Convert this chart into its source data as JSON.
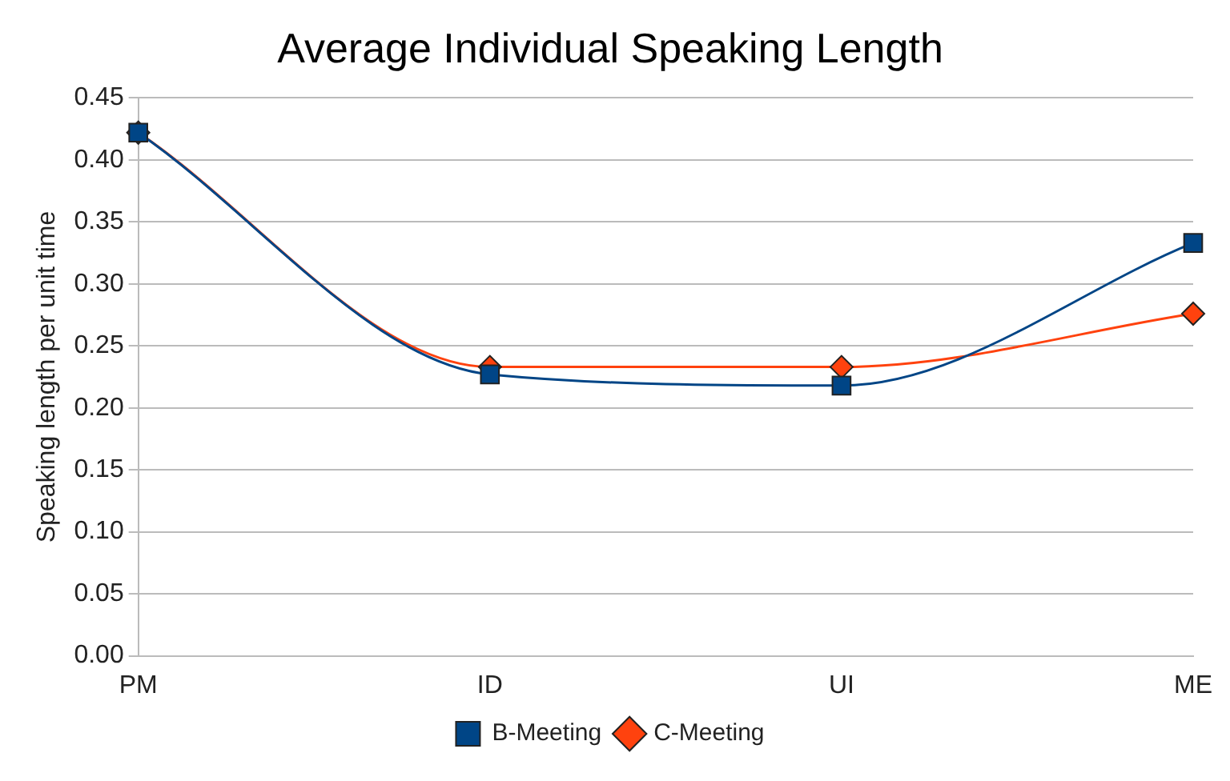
{
  "chart_data": {
    "type": "line",
    "title": "Average Individual Speaking Length",
    "ylabel": "Speaking length per unit time",
    "categories": [
      "PM",
      "ID",
      "UI",
      "ME"
    ],
    "series": [
      {
        "name": "B-Meeting",
        "color": "#004586",
        "marker": "square",
        "values": [
          0.422,
          0.227,
          0.218,
          0.333
        ]
      },
      {
        "name": "C-Meeting",
        "color": "#ff420e",
        "marker": "diamond",
        "values": [
          0.422,
          0.233,
          0.233,
          0.276
        ]
      }
    ],
    "ylim": [
      0,
      0.45
    ],
    "yticks": [
      {
        "value": 0,
        "label": "0.00"
      },
      {
        "value": 0.05,
        "label": "0.05"
      },
      {
        "value": 0.1,
        "label": "0.10"
      },
      {
        "value": 0.15,
        "label": "0.15"
      },
      {
        "value": 0.2,
        "label": "0.20"
      },
      {
        "value": 0.25,
        "label": "0.25"
      },
      {
        "value": 0.3,
        "label": "0.30"
      },
      {
        "value": 0.35,
        "label": "0.35"
      },
      {
        "value": 0.4,
        "label": "0.40"
      },
      {
        "value": 0.45,
        "label": "0.45"
      }
    ],
    "grid": "y",
    "legend": "bottom"
  }
}
